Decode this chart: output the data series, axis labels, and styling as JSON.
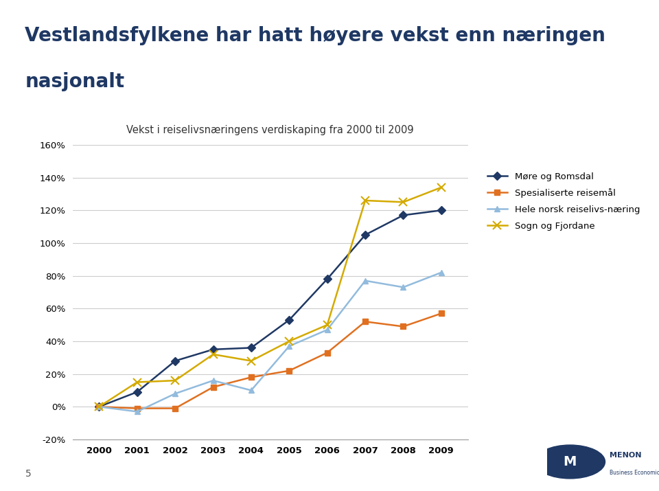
{
  "title_line1": "Vestlandsfylkene har hatt høyere vekst enn næringen",
  "title_line2": "nasjonalt",
  "subtitle": "Vekst i reiselivsnæringens verdiskaping fra 2000 til 2009",
  "years": [
    2000,
    2001,
    2002,
    2003,
    2004,
    2005,
    2006,
    2007,
    2008,
    2009
  ],
  "series": {
    "Møre og Romsdal": {
      "values": [
        0,
        9,
        28,
        35,
        36,
        53,
        78,
        105,
        117,
        120
      ],
      "color": "#1F3864",
      "marker": "D",
      "marker_size": 6,
      "linewidth": 1.8
    },
    "Spesialiserte reisemål": {
      "values": [
        0,
        -1,
        -1,
        12,
        18,
        22,
        33,
        52,
        49,
        57
      ],
      "color": "#E07020",
      "marker": "s",
      "marker_size": 6,
      "linewidth": 1.8
    },
    "Hele norsk reiselivs-næring": {
      "values": [
        0,
        -3,
        8,
        16,
        10,
        37,
        47,
        77,
        73,
        82
      ],
      "color": "#92BBDD",
      "marker": "^",
      "marker_size": 6,
      "linewidth": 1.8
    },
    "Sogn og Fjordane": {
      "values": [
        0,
        15,
        16,
        32,
        28,
        40,
        50,
        126,
        125,
        134
      ],
      "color": "#D4AA00",
      "marker": "x",
      "marker_size": 8,
      "linewidth": 1.8
    }
  },
  "ylim": [
    -20,
    160
  ],
  "yticks": [
    -20,
    0,
    20,
    40,
    60,
    80,
    100,
    120,
    140,
    160
  ],
  "ytick_labels": [
    "-20%",
    "0%",
    "20%",
    "40%",
    "60%",
    "80%",
    "100%",
    "120%",
    "140%",
    "160%"
  ],
  "background_color": "#FFFFFF",
  "header_bg_color": "#DCDCDC",
  "grid_color": "#CCCCCC",
  "title_color": "#1F3864",
  "subtitle_fontsize": 10.5,
  "title_fontsize": 20,
  "legend_fontsize": 9.5,
  "tick_fontsize": 9.5,
  "page_number": "5"
}
